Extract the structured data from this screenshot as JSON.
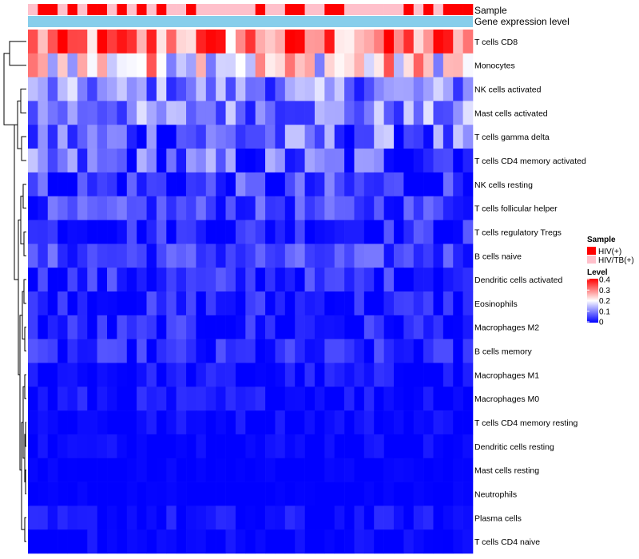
{
  "chart_data": {
    "type": "heatmap",
    "title": "",
    "annotation_labels": {
      "sample": "Sample",
      "expression": "Gene expression level"
    },
    "rows": [
      "T cells CD8",
      "Monocytes",
      "NK cells activated",
      "Mast cells activated",
      "T cells gamma delta",
      "T cells CD4 memory activated",
      "NK cells resting",
      "T cells follicular helper",
      "T cells regulatory  Tregs",
      "B cells naive",
      "Dendritic cells activated",
      "Eosinophils",
      "Macrophages M2",
      "B cells memory",
      "Macrophages M1",
      "Macrophages M0",
      "T cells CD4 memory resting",
      "Dendritic cells resting",
      "Mast cells resting",
      "Neutrophils",
      "Plasma cells",
      "T cells CD4 naive"
    ],
    "n_columns": 45,
    "sample_groups": [
      "T",
      "H",
      "H",
      "T",
      "H",
      "T",
      "H",
      "H",
      "T",
      "H",
      "T",
      "H",
      "T",
      "H",
      "T",
      "T",
      "H",
      "T",
      "T",
      "T",
      "T",
      "T",
      "T",
      "H",
      "T",
      "T",
      "H",
      "H",
      "T",
      "T",
      "H",
      "H",
      "T",
      "T",
      "T",
      "T",
      "T",
      "T",
      "H",
      "T",
      "H",
      "T",
      "H",
      "H",
      "H"
    ],
    "sample_legend": {
      "title": "Sample",
      "entries": [
        {
          "key": "H",
          "label": "HIV(+)",
          "color": "#ff0000"
        },
        {
          "key": "T",
          "label": "HIV/TB(+)",
          "color": "#ffc0cb"
        }
      ]
    },
    "expression_bar_color": "#87ceeb",
    "level_legend": {
      "title": "Level",
      "ticks": [
        "0.4",
        "0.3",
        "0.2",
        "0.1",
        "0"
      ],
      "min": 0,
      "max": 0.4,
      "colors": {
        "low": "#0000ff",
        "mid": "#ffffff",
        "high": "#ff0000"
      }
    },
    "row_profiles": [
      [
        0.3,
        0.08
      ],
      [
        0.22,
        0.08
      ],
      [
        0.1,
        0.05
      ],
      [
        0.1,
        0.05
      ],
      [
        0.07,
        0.06
      ],
      [
        0.06,
        0.06
      ],
      [
        0.03,
        0.05
      ],
      [
        0.05,
        0.03
      ],
      [
        0.03,
        0.03
      ],
      [
        0.05,
        0.03
      ],
      [
        0.03,
        0.03
      ],
      [
        0.02,
        0.03
      ],
      [
        0.02,
        0.03
      ],
      [
        0.02,
        0.03
      ],
      [
        0.01,
        0.02
      ],
      [
        0.01,
        0.02
      ],
      [
        0.005,
        0.015
      ],
      [
        0.005,
        0.012
      ],
      [
        0.0,
        0.005
      ],
      [
        0.0,
        0.004
      ],
      [
        0.005,
        0.02
      ],
      [
        0.0,
        0.015
      ]
    ]
  }
}
